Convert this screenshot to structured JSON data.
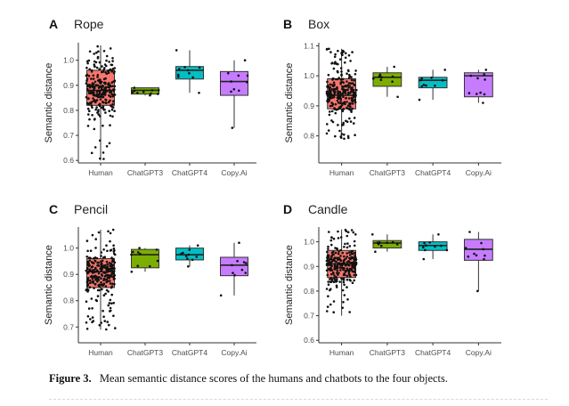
{
  "figure": {
    "caption_label": "Figure 3.",
    "caption_text": "Mean semantic distance scores of the humans and chatbots to the four objects."
  },
  "chart_data": [
    {
      "type": "box",
      "panel_label": "A",
      "title": "Rope",
      "ylabel": "Semantic distance",
      "categories": [
        "Human",
        "ChatGPT3",
        "ChatGPT4",
        "Copy.Ai"
      ],
      "ylim": [
        0.59,
        1.07
      ],
      "yticks": [
        "0.6",
        "0.7",
        "0.8",
        "0.9",
        "1.0"
      ],
      "ytick_values": [
        0.6,
        0.7,
        0.8,
        0.9,
        1.0
      ],
      "colors": [
        "#F8766D",
        "#7CAE00",
        "#00BFC4",
        "#C77CFF"
      ],
      "boxes": [
        {
          "q1": 0.82,
          "median": 0.88,
          "q3": 0.96,
          "whisker_low": 0.6,
          "whisker_high": 1.06,
          "n_points": 260
        },
        {
          "q1": 0.865,
          "median": 0.88,
          "q3": 0.89,
          "whisker_low": 0.86,
          "whisker_high": 0.89,
          "n_points": 10
        },
        {
          "q1": 0.925,
          "median": 0.96,
          "q3": 0.975,
          "whisker_low": 0.87,
          "whisker_high": 1.04,
          "n_points": 10
        },
        {
          "q1": 0.86,
          "median": 0.915,
          "q3": 0.955,
          "whisker_low": 0.73,
          "whisker_high": 1.0,
          "n_points": 10
        }
      ]
    },
    {
      "type": "box",
      "panel_label": "B",
      "title": "Box",
      "ylabel": "Semantic distance",
      "categories": [
        "Human",
        "ChatGPT3",
        "ChatGPT4",
        "Copy.Ai"
      ],
      "ylim": [
        0.71,
        1.11
      ],
      "yticks": [
        "0.8",
        "0.9",
        "1.0",
        "1.1"
      ],
      "ytick_values": [
        0.8,
        0.9,
        1.0,
        1.1
      ],
      "colors": [
        "#F8766D",
        "#7CAE00",
        "#00BFC4",
        "#C77CFF"
      ],
      "boxes": [
        {
          "q1": 0.89,
          "median": 0.935,
          "q3": 0.99,
          "whisker_low": 0.79,
          "whisker_high": 1.09,
          "n_points": 260
        },
        {
          "q1": 0.965,
          "median": 0.995,
          "q3": 1.01,
          "whisker_low": 0.93,
          "whisker_high": 1.03,
          "n_points": 10
        },
        {
          "q1": 0.96,
          "median": 0.985,
          "q3": 0.995,
          "whisker_low": 0.92,
          "whisker_high": 1.02,
          "n_points": 10
        },
        {
          "q1": 0.93,
          "median": 1.0,
          "q3": 1.01,
          "whisker_low": 0.91,
          "whisker_high": 1.02,
          "n_points": 10
        }
      ]
    },
    {
      "type": "box",
      "panel_label": "C",
      "title": "Pencil",
      "ylabel": "Semantic distance",
      "categories": [
        "Human",
        "ChatGPT3",
        "ChatGPT4",
        "Copy.Ai"
      ],
      "ylim": [
        0.64,
        1.08
      ],
      "yticks": [
        "0.7",
        "0.8",
        "0.9",
        "1.0"
      ],
      "ytick_values": [
        0.7,
        0.8,
        0.9,
        1.0
      ],
      "colors": [
        "#F8766D",
        "#7CAE00",
        "#00BFC4",
        "#C77CFF"
      ],
      "boxes": [
        {
          "q1": 0.85,
          "median": 0.91,
          "q3": 0.96,
          "whisker_low": 0.69,
          "whisker_high": 1.07,
          "n_points": 260
        },
        {
          "q1": 0.925,
          "median": 0.975,
          "q3": 0.995,
          "whisker_low": 0.91,
          "whisker_high": 1.0,
          "n_points": 10
        },
        {
          "q1": 0.955,
          "median": 0.975,
          "q3": 1.0,
          "whisker_low": 0.93,
          "whisker_high": 1.01,
          "n_points": 10
        },
        {
          "q1": 0.895,
          "median": 0.935,
          "q3": 0.965,
          "whisker_low": 0.82,
          "whisker_high": 1.02,
          "n_points": 10
        }
      ]
    },
    {
      "type": "box",
      "panel_label": "D",
      "title": "Candle",
      "ylabel": "Semantic distance",
      "categories": [
        "Human",
        "ChatGPT3",
        "ChatGPT4",
        "Copy.Ai"
      ],
      "ylim": [
        0.59,
        1.06
      ],
      "yticks": [
        "0.6",
        "0.7",
        "0.8",
        "0.9",
        "1.0"
      ],
      "ytick_values": [
        0.6,
        0.7,
        0.8,
        0.9,
        1.0
      ],
      "colors": [
        "#F8766D",
        "#7CAE00",
        "#00BFC4",
        "#C77CFF"
      ],
      "boxes": [
        {
          "q1": 0.855,
          "median": 0.91,
          "q3": 0.965,
          "whisker_low": 0.7,
          "whisker_high": 1.05,
          "n_points": 260
        },
        {
          "q1": 0.975,
          "median": 0.995,
          "q3": 1.005,
          "whisker_low": 0.96,
          "whisker_high": 1.03,
          "n_points": 10
        },
        {
          "q1": 0.965,
          "median": 0.985,
          "q3": 1.0,
          "whisker_low": 0.93,
          "whisker_high": 1.03,
          "n_points": 10
        },
        {
          "q1": 0.925,
          "median": 0.97,
          "q3": 1.01,
          "whisker_low": 0.8,
          "whisker_high": 1.04,
          "n_points": 10
        }
      ]
    }
  ]
}
